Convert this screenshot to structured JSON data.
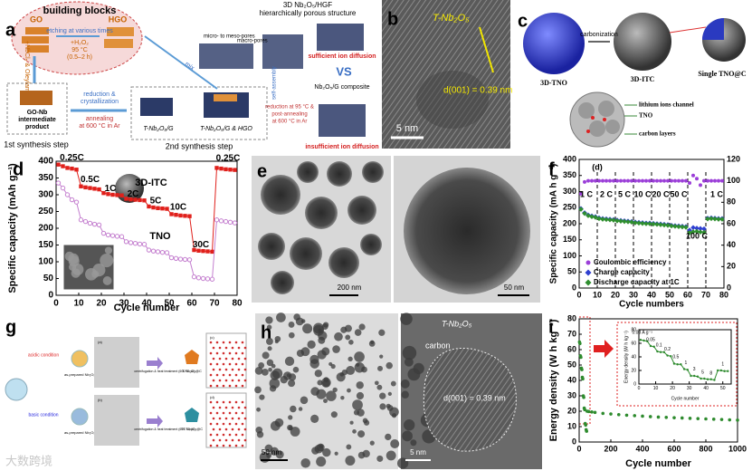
{
  "panels": {
    "a": {
      "label": "a",
      "building_blocks": "building blocks",
      "go": "GO",
      "hgo": "HGO",
      "etching": "etching at various times",
      "h2o2": "+H₂O₂",
      "temp": "95 °C",
      "time": "(0.5–2 h)",
      "nbcl": "+NbCl₅ & Oleylamine",
      "go_nb": [
        "GO-Nb",
        "intermediate",
        "product"
      ],
      "step1": "1st synthesis step",
      "reduction": [
        "reduction &",
        "crystallization"
      ],
      "annealing": [
        "annealing",
        "at 600 °C in Ar"
      ],
      "tnbg": "T-Nb₂O₅/G",
      "tnbg_hgo": "T-Nb₂O₅/G & HGO",
      "mix": "mix",
      "step2": "2nd synthesis step",
      "hgf": [
        "3D Nb₂O₅/HGF",
        "hierarchically porous structure"
      ],
      "micro": "micro- to meso-pores",
      "macro": "macro-pores",
      "self_assembly": "self-assembly",
      "sufficient": "sufficient ion diffusion",
      "vs": "VS",
      "composite": "Nb₂O₅/G composite",
      "post": [
        "reduction at 95 °C &",
        "post-annealing",
        "at 600 °C in Ar"
      ],
      "insufficient": "insufficient ion diffusion"
    },
    "b": {
      "label": "b",
      "phase": "T-Nb₂O₅",
      "spacing": "d(001) = 0.39 nm",
      "scale": "5 nm"
    },
    "c": {
      "label": "c",
      "carbonization": "carbonization",
      "tno": "3D-TNO",
      "itc": "3D-ITC",
      "single": "Single TNO@C",
      "channel": "lithium ions channel",
      "tno2": "TNO",
      "carbon": "carbon layers"
    },
    "e": {
      "label": "e",
      "scale1": "200 nm",
      "scale2": "50 nm"
    },
    "g": {
      "label": "g",
      "acidic": "acidic condition",
      "basic": "basic condition",
      "as_prepared": [
        "as-prepared Nb₂O₅",
        "as-prepared Nb₂O₅"
      ],
      "treatment": [
        "centrifugation & heat treatment (600 °C, Ar)",
        "centrifugation & heat treatment (600 °C, Ar)"
      ],
      "t_nb": "T-Nb₂O₅@C",
      "tt_nb": "TT-Nb₂O₅@C",
      "subs": [
        "(a)",
        "(b)",
        "(c)",
        "(d)"
      ]
    },
    "h": {
      "label": "h",
      "scale1": "50 nm",
      "scale2": "5 nm",
      "carbon": "carbon",
      "phase": "T-Nb₂O₅",
      "spacing": "d(001) = 0.39 nm"
    }
  },
  "watermark": "大数跨境",
  "chart_data": [
    {
      "label": "d",
      "type": "line",
      "xlabel": "Cycle number",
      "ylabel": "Specific capacity (mAh g⁻¹)",
      "xlim": [
        0,
        80
      ],
      "xticks": [
        0,
        10,
        20,
        30,
        40,
        50,
        60,
        70,
        80
      ],
      "ylim": [
        0,
        400
      ],
      "yticks": [
        0,
        50,
        100,
        150,
        200,
        250,
        300,
        350,
        400
      ],
      "lines": true,
      "legend": "direct",
      "x": [
        1,
        3,
        5,
        7,
        9,
        11,
        13,
        15,
        17,
        19,
        21,
        23,
        25,
        27,
        29,
        31,
        33,
        35,
        37,
        39,
        41,
        43,
        45,
        47,
        49,
        51,
        53,
        55,
        57,
        59,
        61,
        63,
        65,
        67,
        69,
        71,
        73,
        75,
        77,
        79
      ],
      "series": [
        {
          "name": "3D-ITC",
          "color": "#e0201b",
          "marker": "square",
          "values": [
            390,
            385,
            380,
            378,
            375,
            325,
            322,
            320,
            318,
            316,
            305,
            302,
            300,
            299,
            298,
            288,
            286,
            285,
            284,
            283,
            265,
            262,
            260,
            259,
            258,
            242,
            240,
            238,
            237,
            236,
            135,
            133,
            132,
            131,
            130,
            380,
            378,
            376,
            375,
            374
          ]
        },
        {
          "name": "TNO",
          "color": "#c47fcf",
          "marker": "circle",
          "values": [
            335,
            320,
            300,
            285,
            278,
            225,
            220,
            215,
            212,
            210,
            185,
            180,
            178,
            176,
            175,
            160,
            157,
            155,
            153,
            152,
            135,
            132,
            130,
            128,
            127,
            112,
            110,
            108,
            107,
            106,
            55,
            52,
            50,
            49,
            48,
            225,
            222,
            220,
            218,
            216
          ]
        }
      ],
      "annotations": [
        "0.25C",
        "0.5C",
        "1C",
        "2C",
        "5C",
        "10C",
        "30C",
        "0.25C"
      ]
    },
    {
      "label": "f",
      "type": "scatter",
      "xlabel": "Cycle numbers",
      "ylabel": "Specific capacity (mA h g⁻¹)",
      "xlim": [
        0,
        80
      ],
      "xticks": [
        0,
        10,
        20,
        30,
        40,
        50,
        60,
        70,
        80
      ],
      "ylim": [
        0,
        400
      ],
      "yticks": [
        0,
        50,
        100,
        150,
        200,
        250,
        300,
        350,
        400
      ],
      "y2lim": [
        0,
        120
      ],
      "y2ticks": [
        0,
        20,
        40,
        60,
        80,
        100,
        120
      ],
      "lines": false,
      "legend": "lower left",
      "dividers": [
        10,
        20,
        30,
        40,
        50,
        60,
        70
      ],
      "x": [
        1,
        3,
        5,
        7,
        9,
        11,
        13,
        15,
        17,
        19,
        21,
        23,
        25,
        27,
        29,
        31,
        33,
        35,
        37,
        39,
        41,
        43,
        45,
        47,
        49,
        51,
        53,
        55,
        57,
        59,
        61,
        63,
        65,
        67,
        69,
        71,
        73,
        75,
        77,
        79
      ],
      "series": [
        {
          "name": "Coulombic efficiency",
          "color": "#9b3fd8",
          "marker": "circle",
          "axis": "y2",
          "values": [
            88,
            99,
            100,
            100,
            100,
            100,
            100,
            100,
            100,
            100,
            100,
            100,
            100,
            100,
            100,
            100,
            100,
            100,
            100,
            100,
            100,
            100,
            100,
            100,
            100,
            100,
            100,
            100,
            100,
            100,
            98,
            105,
            102,
            96,
            100,
            100,
            100,
            100,
            100,
            100
          ]
        },
        {
          "name": "Charge capacity",
          "color": "#2e3fd0",
          "marker": "diamond",
          "values": [
            247,
            234,
            227,
            224,
            222,
            218,
            216,
            215,
            214,
            213,
            211,
            210,
            209,
            208,
            207,
            205,
            204,
            203,
            202,
            202,
            201,
            200,
            199,
            198,
            197,
            195,
            194,
            193,
            192,
            191,
            180,
            188,
            186,
            185,
            184,
            217,
            218,
            217,
            216,
            216
          ]
        },
        {
          "name": "Discharge capacity at 1C",
          "color": "#2f8f2f",
          "marker": "diamond",
          "values": [
            245,
            232,
            225,
            222,
            220,
            216,
            214,
            213,
            212,
            211,
            209,
            208,
            207,
            206,
            205,
            203,
            202,
            201,
            200,
            200,
            199,
            198,
            197,
            196,
            195,
            193,
            192,
            191,
            190,
            189,
            172,
            175,
            176,
            174,
            173,
            215,
            216,
            215,
            214,
            214
          ]
        }
      ],
      "annotations": [
        "(d)",
        "1 C",
        "2 C",
        "5 C",
        "10 C",
        "20 C",
        "50 C",
        "100 C",
        "1 C"
      ]
    },
    {
      "label": "i",
      "type": "scatter",
      "xlabel": "Cycle number",
      "ylabel": "Energy density (W h kg⁻¹)",
      "xlim": [
        0,
        1000
      ],
      "xticks": [
        0,
        200,
        400,
        600,
        800,
        1000
      ],
      "ylim": [
        0,
        80
      ],
      "yticks": [
        0,
        10,
        20,
        30,
        40,
        50,
        60,
        70,
        80
      ],
      "lines": false,
      "x": [
        2,
        5,
        8,
        11,
        14,
        17,
        20,
        23,
        26,
        29,
        32,
        35,
        38,
        41,
        44,
        47,
        50,
        60,
        80,
        100,
        150,
        200,
        250,
        300,
        350,
        400,
        450,
        500,
        550,
        600,
        650,
        700,
        750,
        800,
        850,
        900,
        950,
        1000
      ],
      "series": [
        {
          "name": "Energy density",
          "color": "#2e8b2e",
          "marker": "circle",
          "values": [
            65,
            64,
            56,
            55,
            48,
            47,
            42,
            41,
            30,
            29,
            22,
            21,
            12,
            11,
            8,
            7,
            20,
            19.8,
            19.5,
            19.2,
            18.6,
            18.2,
            17.8,
            17.4,
            17.1,
            16.8,
            16.5,
            16.2,
            16,
            15.8,
            15.6,
            15.4,
            15.2,
            15,
            14.8,
            14.6,
            14.4,
            14.2
          ]
        }
      ]
    },
    {
      "type": "scatter",
      "xlabel": "Cycle number",
      "ylabel": "Energy density (W h kg⁻¹)",
      "xlim": [
        0,
        55
      ],
      "xticks": [
        0,
        10,
        20,
        30,
        40,
        50
      ],
      "ylim": [
        0,
        80
      ],
      "yticks": [
        0,
        20,
        40,
        60,
        80
      ],
      "lines": true,
      "x": [
        1,
        3,
        5,
        7,
        9,
        11,
        13,
        15,
        17,
        19,
        21,
        23,
        25,
        27,
        29,
        31,
        33,
        35,
        37,
        39,
        41,
        43,
        45,
        47,
        49,
        51,
        53
      ],
      "series": [
        {
          "name": "Energy density",
          "color": "#2e8b2e",
          "marker": "circle",
          "values": [
            65,
            64,
            63,
            56,
            55,
            48,
            47,
            47,
            42,
            41,
            30,
            29,
            29,
            22,
            21,
            12,
            12,
            11,
            8,
            8,
            7,
            7,
            6,
            20,
            20,
            19,
            19
          ]
        }
      ],
      "annotations": [
        "0.03 A g⁻¹",
        "0.05",
        "0.1",
        "0.2",
        "0.5",
        "1",
        "3",
        "5",
        "8",
        "1"
      ]
    }
  ]
}
